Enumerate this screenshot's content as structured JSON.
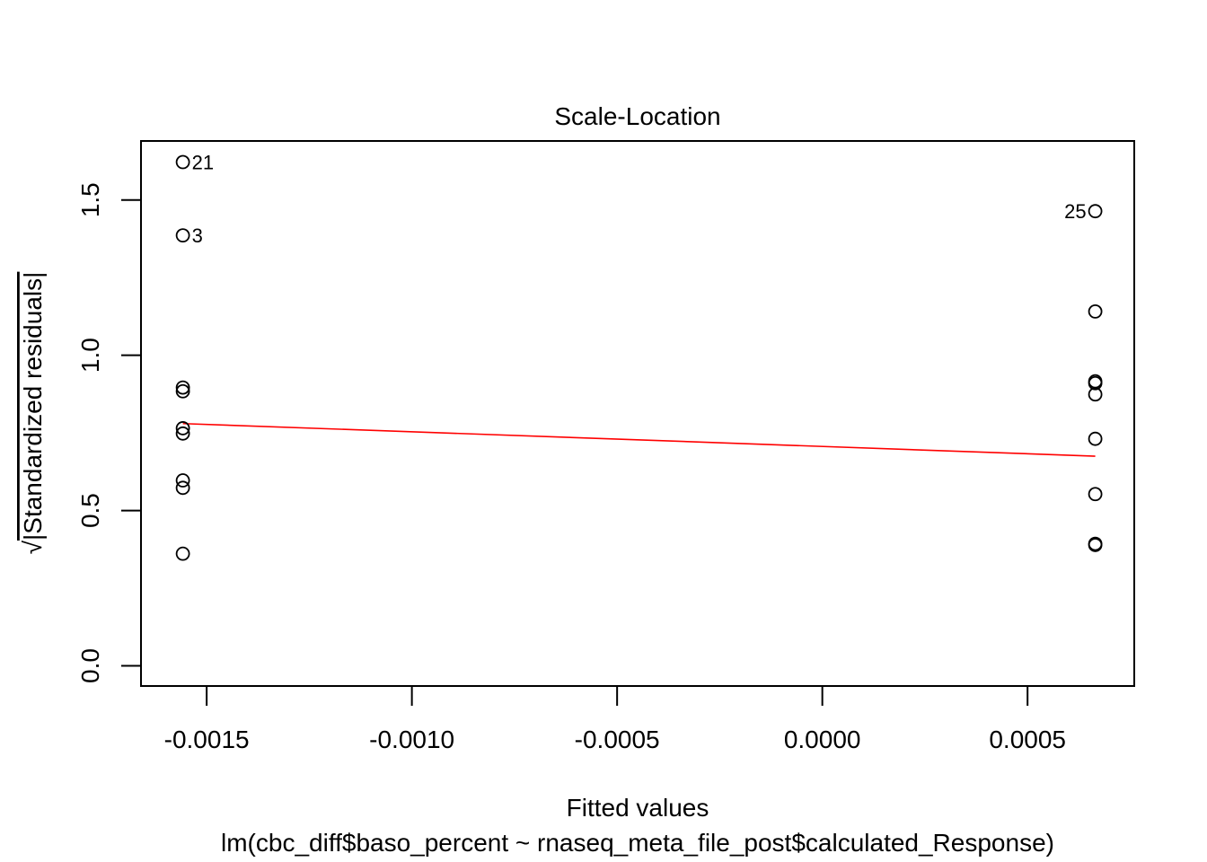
{
  "chart_data": {
    "type": "scatter",
    "title": "Scale-Location",
    "xlabel": "Fitted values",
    "subtitle": "lm(cbc_diff$baso_percent ~ rnaseq_meta_file_post$calculated_Response)",
    "ylabel_radical": "√",
    "ylabel_text": "|Standardized residuals|",
    "xlim": [
      -0.00166,
      0.00076
    ],
    "ylim": [
      -0.065,
      1.69
    ],
    "x_ticks": [
      {
        "value": -0.0015,
        "label": "-0.0015"
      },
      {
        "value": -0.001,
        "label": "-0.0010"
      },
      {
        "value": -0.0005,
        "label": "-0.0005"
      },
      {
        "value": 0.0,
        "label": "0.0000"
      },
      {
        "value": 0.0005,
        "label": "0.0005"
      }
    ],
    "y_ticks": [
      {
        "value": 0.0,
        "label": "0.0"
      },
      {
        "value": 0.5,
        "label": "0.5"
      },
      {
        "value": 1.0,
        "label": "1.0"
      },
      {
        "value": 1.5,
        "label": "1.5"
      }
    ],
    "points": [
      {
        "x": -0.001558,
        "y": 1.622,
        "label": "21",
        "label_side": "right"
      },
      {
        "x": -0.001558,
        "y": 1.386,
        "label": "3",
        "label_side": "right"
      },
      {
        "x": -0.001558,
        "y": 0.896,
        "label": ""
      },
      {
        "x": -0.001558,
        "y": 0.884,
        "label": ""
      },
      {
        "x": -0.001558,
        "y": 0.765,
        "label": ""
      },
      {
        "x": -0.001558,
        "y": 0.748,
        "label": ""
      },
      {
        "x": -0.001558,
        "y": 0.597,
        "label": ""
      },
      {
        "x": -0.001558,
        "y": 0.573,
        "label": ""
      },
      {
        "x": -0.001558,
        "y": 0.361,
        "label": ""
      },
      {
        "x": 0.000665,
        "y": 1.464,
        "label": "25",
        "label_side": "left"
      },
      {
        "x": 0.000665,
        "y": 1.141,
        "label": ""
      },
      {
        "x": 0.000665,
        "y": 0.916,
        "label": ""
      },
      {
        "x": 0.000665,
        "y": 0.91,
        "label": ""
      },
      {
        "x": 0.000665,
        "y": 0.874,
        "label": ""
      },
      {
        "x": 0.000665,
        "y": 0.731,
        "label": ""
      },
      {
        "x": 0.000665,
        "y": 0.553,
        "label": ""
      },
      {
        "x": 0.000665,
        "y": 0.393,
        "label": ""
      },
      {
        "x": 0.000665,
        "y": 0.389,
        "label": ""
      }
    ],
    "smooth_line": {
      "color": "#ff0000",
      "x": [
        -0.001558,
        0.000665
      ],
      "y": [
        0.78,
        0.675
      ]
    },
    "grid": false
  }
}
